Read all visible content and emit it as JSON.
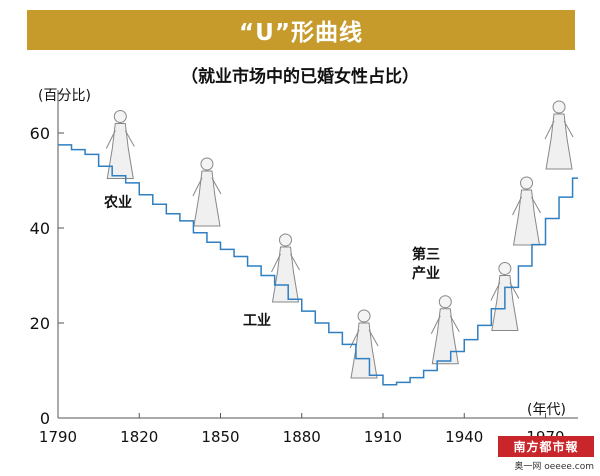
{
  "title": "“U”形曲线",
  "subtitle": "（就业市场中的已婚女性占比）",
  "chart_data": {
    "type": "line",
    "step": true,
    "x": [
      1790,
      1795,
      1800,
      1805,
      1810,
      1815,
      1820,
      1825,
      1830,
      1835,
      1840,
      1845,
      1850,
      1855,
      1860,
      1865,
      1870,
      1875,
      1880,
      1885,
      1890,
      1895,
      1900,
      1905,
      1910,
      1915,
      1920,
      1925,
      1930,
      1935,
      1940,
      1945,
      1950,
      1955,
      1960,
      1965,
      1970,
      1975,
      1980
    ],
    "y": [
      57.5,
      56.5,
      55.5,
      53,
      51,
      49.5,
      47,
      45,
      43,
      41.5,
      39,
      37,
      35.5,
      34,
      32,
      30,
      28,
      25,
      22.5,
      20,
      18,
      15.5,
      12.5,
      9,
      7,
      7.5,
      8.5,
      10,
      12,
      14,
      16.5,
      19.5,
      23,
      27.5,
      32,
      36.5,
      42,
      46.5,
      50.5
    ],
    "xticks": [
      1790,
      1820,
      1850,
      1880,
      1910,
      1940,
      1970
    ],
    "yticks": [
      0,
      20,
      40,
      60
    ],
    "xlim": [
      1790,
      1982
    ],
    "ylim": [
      0,
      68
    ],
    "ylabel": "(百分比)",
    "xlabel": "(年代)",
    "annotations": [
      "农业",
      "工业",
      "第三",
      "产业"
    ],
    "line_color": "#2f7fc1",
    "grid": false
  },
  "watermark": {
    "logo": "南方都市報",
    "site": "奥一网 oeeee.com"
  }
}
